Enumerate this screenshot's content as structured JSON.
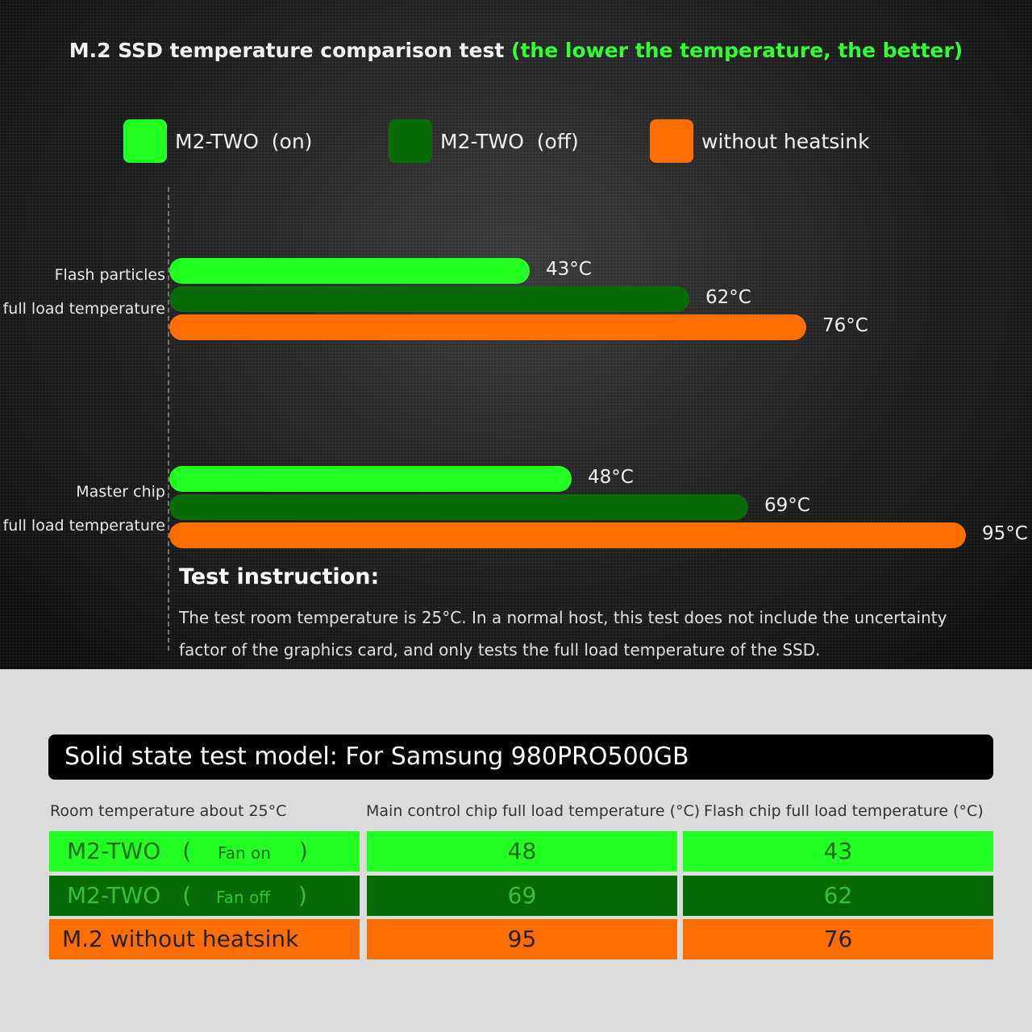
{
  "colors": {
    "fan_on": "#22ff22",
    "fan_off": "#086b08",
    "no_heatsink": "#ff6e00"
  },
  "header": {
    "title_main": "M.2 SSD temperature comparison test",
    "title_note": "(the lower the temperature, the better)"
  },
  "legend": [
    {
      "name": "M2-TWO",
      "state": "(on)"
    },
    {
      "name": "M2-TWO",
      "state": "(off)"
    },
    {
      "name": "without heatsink",
      "state": ""
    }
  ],
  "chart_data": {
    "type": "bar",
    "orientation": "horizontal",
    "categories": [
      "Flash particles full load temperature",
      "Master chip full load temperature"
    ],
    "category_lines": [
      [
        "Flash particles",
        "full load temperature"
      ],
      [
        "Master chip",
        "full load temperature"
      ]
    ],
    "unit": "°C",
    "series": [
      {
        "name": "M2-TWO (on)",
        "values": [
          43,
          48
        ],
        "labels": [
          "43°C",
          "48°C"
        ]
      },
      {
        "name": "M2-TWO (off)",
        "values": [
          62,
          69
        ],
        "labels": [
          "62°C",
          "69°C"
        ]
      },
      {
        "name": "without heatsink",
        "values": [
          76,
          95
        ],
        "labels": [
          "76°C",
          "95°C"
        ]
      }
    ],
    "title": "M.2 SSD temperature comparison test (the lower the temperature, the better)",
    "xlabel": "",
    "ylabel": "",
    "legend_position": "top"
  },
  "instruction": {
    "title": "Test instruction:",
    "line1": "The test room temperature is 25°C. In a normal host, this test does not include the uncertainty",
    "line2": "factor of the graphics card, and only tests the full load temperature of the SSD."
  },
  "table": {
    "model": "Solid state test model: For Samsung 980PRO500GB",
    "headers": [
      "Room temperature about 25°C",
      "Main control chip full load temperature (°C)",
      "Flash chip full load temperature (°C)"
    ],
    "rows": [
      {
        "name": "M2-TWO",
        "open": "(",
        "sub": "Fan on",
        "close": ")",
        "main": "48",
        "flash": "43"
      },
      {
        "name": "M2-TWO",
        "open": "(",
        "sub": "Fan off",
        "close": ")",
        "main": "69",
        "flash": "62"
      },
      {
        "name": "M.2 without heatsink",
        "open": "",
        "sub": "",
        "close": "",
        "main": "95",
        "flash": "76"
      }
    ]
  }
}
